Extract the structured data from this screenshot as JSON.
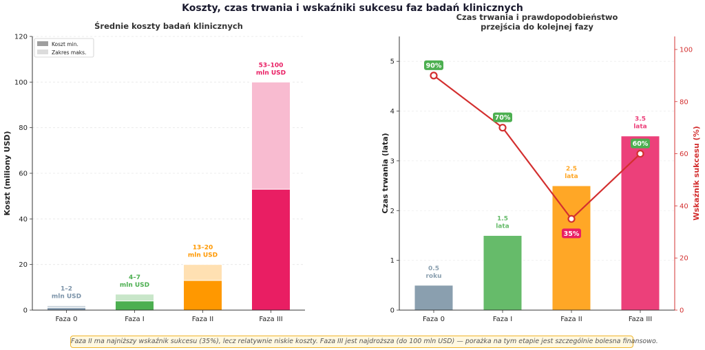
{
  "title": "Koszty, czas trwania i wskaźniki sukcesu faz badań klinicznych",
  "footnote": "Faza II ma najniższy wskaźnik sukcesu (35%), lecz relatywnie niskie koszty.  Faza III jest najdroższa (do 100 mln USD) — porażka na tym etapie jest szczególnie bolesna finansowo.",
  "chart_data": [
    {
      "type": "bar",
      "title": "Średnie koszty badań klinicznych",
      "ylabel": "Koszt (miliony USD)",
      "xlabel": "",
      "categories": [
        "Faza 0",
        "Faza I",
        "Faza II",
        "Faza III"
      ],
      "series": [
        {
          "name": "Koszt min.",
          "values": [
            1,
            4,
            13,
            53
          ]
        },
        {
          "name": "Zakres maks.",
          "values": [
            2,
            7,
            20,
            100
          ]
        }
      ],
      "bar_labels": [
        [
          "1–2",
          "mln USD"
        ],
        [
          "4–7",
          "mln USD"
        ],
        [
          "13–20",
          "mln USD"
        ],
        [
          "53–100",
          "mln USD"
        ]
      ],
      "ylim": [
        0,
        120
      ],
      "yticks": [
        0,
        20,
        40,
        60,
        80,
        100,
        120
      ],
      "legend_position": "top-left",
      "grid": "horizontal dashed",
      "colors_min": [
        "#7a92a8",
        "#4caf50",
        "#ff9800",
        "#e91e63"
      ],
      "colors_max": [
        "#d0d9e0",
        "#c8e6c9",
        "#ffe0b2",
        "#f8bbd0"
      ]
    },
    {
      "type": "bar+line",
      "title": "Czas trwania i prawdopodobieństwo przejścia do kolejnej fazy",
      "ylabel": "Czas trwania (lata)",
      "ylabel_right": "Wskaźnik sukcesu (%)",
      "categories": [
        "Faza 0",
        "Faza I",
        "Faza II",
        "Faza III"
      ],
      "series": [
        {
          "values": [
            0.5,
            1.5,
            2.5,
            3.5
          ],
          "axis": "left"
        },
        {
          "values": [
            90,
            70,
            35,
            60
          ],
          "axis": "right"
        }
      ],
      "bar_labels": [
        [
          "0.5",
          "roku"
        ],
        [
          "1.5",
          "lata"
        ],
        [
          "2.5",
          "lata"
        ],
        [
          "3.5",
          "lata"
        ]
      ],
      "line_labels": [
        "90%",
        "70%",
        "35%",
        "60%"
      ],
      "ylim": [
        0,
        5.5
      ],
      "yticks": [
        0,
        1,
        2,
        3,
        4,
        5
      ],
      "ylim_right": [
        0,
        105
      ],
      "yticks_right": [
        0,
        20,
        40,
        60,
        80,
        100
      ],
      "colors": [
        "#8a9faf",
        "#66bb6a",
        "#ffa726",
        "#ec407a"
      ],
      "line_color": "#d32f2f"
    }
  ]
}
